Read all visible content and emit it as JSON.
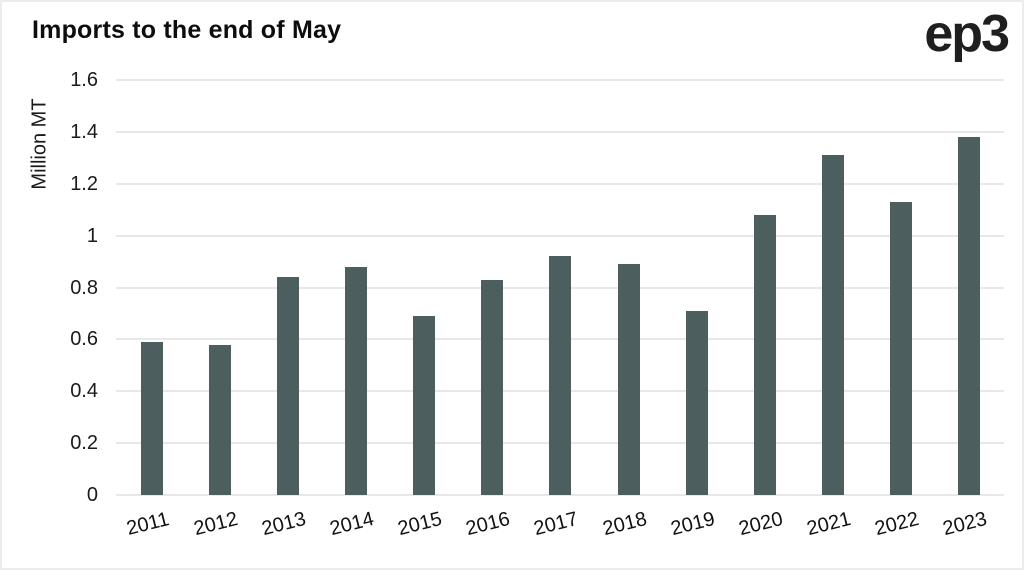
{
  "header": {
    "title": "Imports to the end of May",
    "logo_text": "ep3"
  },
  "colors": {
    "bar": "#4d5e5f",
    "gridline": "#e8e8e8",
    "text": "#1a1a1a",
    "background": "#ffffff"
  },
  "chart_data": {
    "type": "bar",
    "title": "Imports to the end of May",
    "xlabel": "",
    "ylabel": "Million MT",
    "categories": [
      "2011",
      "2012",
      "2013",
      "2014",
      "2015",
      "2016",
      "2017",
      "2018",
      "2019",
      "2020",
      "2021",
      "2022",
      "2023"
    ],
    "values": [
      0.59,
      0.58,
      0.84,
      0.88,
      0.69,
      0.83,
      0.92,
      0.89,
      0.71,
      1.08,
      1.31,
      1.13,
      1.38
    ],
    "ylim": [
      0,
      1.6
    ],
    "ytick_labels": [
      "0",
      "0.2",
      "0.4",
      "0.6",
      "0.8",
      "1",
      "1.2",
      "1.4",
      "1.6"
    ],
    "ytick_values": [
      0,
      0.2,
      0.4,
      0.6,
      0.8,
      1.0,
      1.2,
      1.4,
      1.6
    ],
    "grid": "horizontal",
    "legend_position": "none",
    "bar_color": "#4d5e5f"
  }
}
